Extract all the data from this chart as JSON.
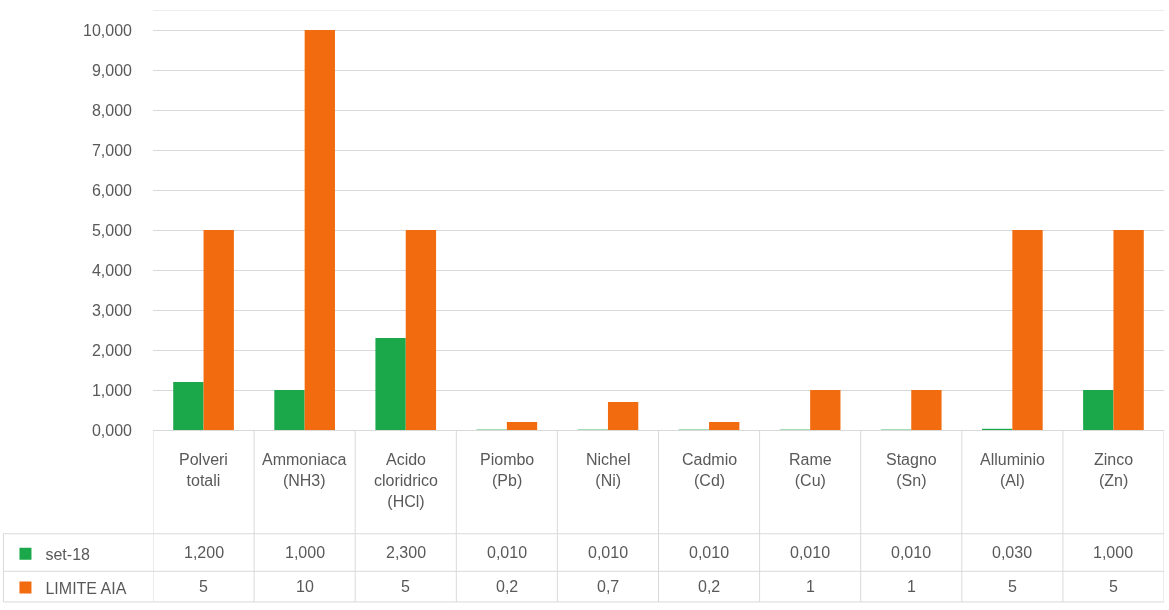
{
  "chart_data": {
    "type": "bar",
    "categories": [
      "Polveri totali",
      "Ammoniaca (NH3)",
      "Acido cloridrico (HCl)",
      "Piombo (Pb)",
      "Nichel (Ni)",
      "Cadmio (Cd)",
      "Rame (Cu)",
      "Stagno (Sn)",
      "Alluminio (Al)",
      "Zinco (Zn)"
    ],
    "series": [
      {
        "name": "set-18",
        "color": "#1aa84a",
        "values": [
          1.2,
          1.0,
          2.3,
          0.01,
          0.01,
          0.01,
          0.01,
          0.01,
          0.03,
          1.0
        ],
        "value_labels": [
          "1,200",
          "1,000",
          "2,300",
          "0,010",
          "0,010",
          "0,010",
          "0,010",
          "0,010",
          "0,030",
          "1,000"
        ]
      },
      {
        "name": "LIMITE AIA",
        "color": "#f26b0f",
        "values": [
          5,
          10,
          5,
          0.2,
          0.7,
          0.2,
          1,
          1,
          5,
          5
        ],
        "value_labels": [
          "5",
          "10",
          "5",
          "0,2",
          "0,7",
          "0,2",
          "1",
          "1",
          "5",
          "5"
        ]
      }
    ],
    "ylim": [
      0,
      10.5
    ],
    "yticks": [
      {
        "value": 0,
        "label": "0,000"
      },
      {
        "value": 1,
        "label": "1,000"
      },
      {
        "value": 2,
        "label": "2,000"
      },
      {
        "value": 3,
        "label": "3,000"
      },
      {
        "value": 4,
        "label": "4,000"
      },
      {
        "value": 5,
        "label": "5,000"
      },
      {
        "value": 6,
        "label": "6,000"
      },
      {
        "value": 7,
        "label": "7,000"
      },
      {
        "value": 8,
        "label": "8,000"
      },
      {
        "value": 9,
        "label": "9,000"
      },
      {
        "value": 10,
        "label": "10,000"
      }
    ],
    "grid": "y",
    "legend": "bottom left"
  }
}
